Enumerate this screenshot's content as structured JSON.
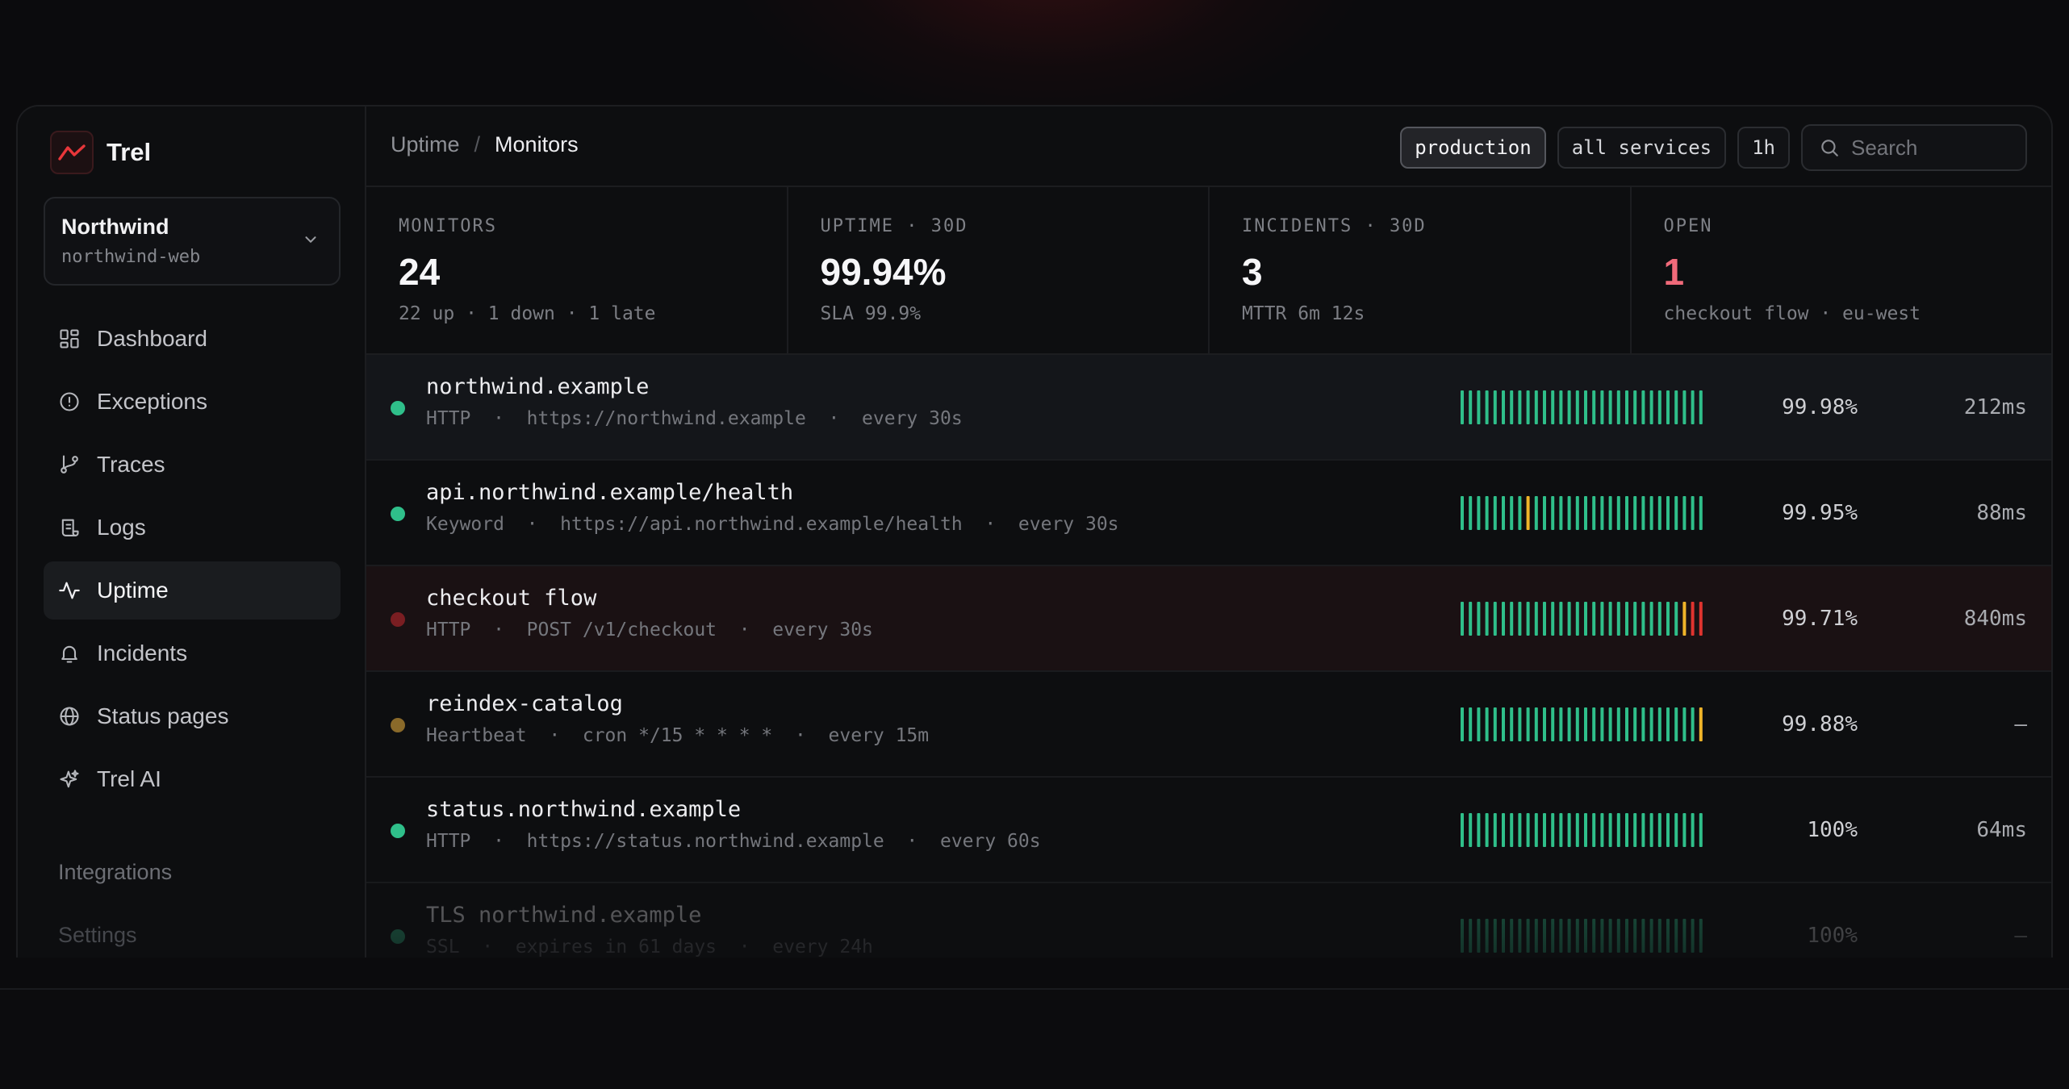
{
  "app": {
    "name": "Trel"
  },
  "org": {
    "name": "Northwind",
    "project": "northwind-web"
  },
  "nav": [
    {
      "label": "Dashboard",
      "icon": "grid-icon"
    },
    {
      "label": "Exceptions",
      "icon": "alert-circle-icon"
    },
    {
      "label": "Traces",
      "icon": "git-branch-icon"
    },
    {
      "label": "Logs",
      "icon": "scroll-icon"
    },
    {
      "label": "Uptime",
      "icon": "activity-icon",
      "active": true
    },
    {
      "label": "Incidents",
      "icon": "bell-icon"
    },
    {
      "label": "Status pages",
      "icon": "globe-icon"
    },
    {
      "label": "Trel AI",
      "icon": "sparkles-icon"
    }
  ],
  "nav_lower": [
    "Integrations",
    "Settings"
  ],
  "breadcrumb": {
    "parent": "Uptime",
    "separator": "/",
    "current": "Monitors"
  },
  "filters": {
    "environment": "production",
    "services": "all services",
    "range": "1h",
    "search_placeholder": "Search"
  },
  "stats": [
    {
      "label": "MONITORS",
      "value": "24",
      "sub": "22 up · 1 down · 1 late"
    },
    {
      "label": "UPTIME · 30D",
      "value": "99.94%",
      "sub": "SLA 99.9%"
    },
    {
      "label": "INCIDENTS · 30D",
      "value": "3",
      "sub": "MTTR 6m 12s"
    },
    {
      "label": "OPEN",
      "value": "1",
      "sub": "checkout flow · eu-west",
      "alert": true
    }
  ],
  "colors": {
    "up": "#2fbf8a",
    "warn": "#f0b429",
    "down": "#e0342f",
    "accent": "#e8363a",
    "open_value": "#f06a7a"
  },
  "monitors": [
    {
      "name": "northwind.example",
      "sub": "HTTP  ·  https://northwind.example  ·  every 30s",
      "uptime": "99.98%",
      "latency": "212ms",
      "status": "up",
      "history": [
        "up",
        "up",
        "up",
        "up",
        "up",
        "up",
        "up",
        "up",
        "up",
        "up",
        "up",
        "up",
        "up",
        "up",
        "up",
        "up",
        "up",
        "up",
        "up",
        "up",
        "up",
        "up",
        "up",
        "up",
        "up",
        "up",
        "up",
        "up",
        "up",
        "up"
      ]
    },
    {
      "name": "api.northwind.example/health",
      "sub": "Keyword  ·  https://api.northwind.example/health  ·  every 30s",
      "uptime": "99.95%",
      "latency": "88ms",
      "status": "up",
      "history": [
        "up",
        "up",
        "up",
        "up",
        "up",
        "up",
        "up",
        "up",
        "warn",
        "up",
        "up",
        "up",
        "up",
        "up",
        "up",
        "up",
        "up",
        "up",
        "up",
        "up",
        "up",
        "up",
        "up",
        "up",
        "up",
        "up",
        "up",
        "up",
        "up",
        "up"
      ]
    },
    {
      "name": "checkout flow",
      "sub": "HTTP  ·  POST /v1/checkout  ·  every 30s",
      "uptime": "99.71%",
      "latency": "840ms",
      "status": "down",
      "history": [
        "up",
        "up",
        "up",
        "up",
        "up",
        "up",
        "up",
        "up",
        "up",
        "up",
        "up",
        "up",
        "up",
        "up",
        "up",
        "up",
        "up",
        "up",
        "up",
        "up",
        "up",
        "up",
        "up",
        "up",
        "up",
        "up",
        "up",
        "warn",
        "down",
        "down"
      ]
    },
    {
      "name": "reindex-catalog",
      "sub": "Heartbeat  ·  cron */15 * * * *  ·  every 15m",
      "uptime": "99.88%",
      "latency": "—",
      "status": "late",
      "history": [
        "up",
        "up",
        "up",
        "up",
        "up",
        "up",
        "up",
        "up",
        "up",
        "up",
        "up",
        "up",
        "up",
        "up",
        "up",
        "up",
        "up",
        "up",
        "up",
        "up",
        "up",
        "up",
        "up",
        "up",
        "up",
        "up",
        "up",
        "up",
        "up",
        "warn"
      ]
    },
    {
      "name": "status.northwind.example",
      "sub": "HTTP  ·  https://status.northwind.example  ·  every 60s",
      "uptime": "100%",
      "latency": "64ms",
      "status": "up",
      "history": [
        "up",
        "up",
        "up",
        "up",
        "up",
        "up",
        "up",
        "up",
        "up",
        "up",
        "up",
        "up",
        "up",
        "up",
        "up",
        "up",
        "up",
        "up",
        "up",
        "up",
        "up",
        "up",
        "up",
        "up",
        "up",
        "up",
        "up",
        "up",
        "up",
        "up"
      ]
    },
    {
      "name": "TLS northwind.example",
      "sub": "SSL  ·  expires in 61 days  ·  every 24h",
      "uptime": "100%",
      "latency": "—",
      "status": "up",
      "history": [
        "up",
        "up",
        "up",
        "up",
        "up",
        "up",
        "up",
        "up",
        "up",
        "up",
        "up",
        "up",
        "up",
        "up",
        "up",
        "up",
        "up",
        "up",
        "up",
        "up",
        "up",
        "up",
        "up",
        "up",
        "up",
        "up",
        "up",
        "up",
        "up",
        "up"
      ]
    }
  ]
}
